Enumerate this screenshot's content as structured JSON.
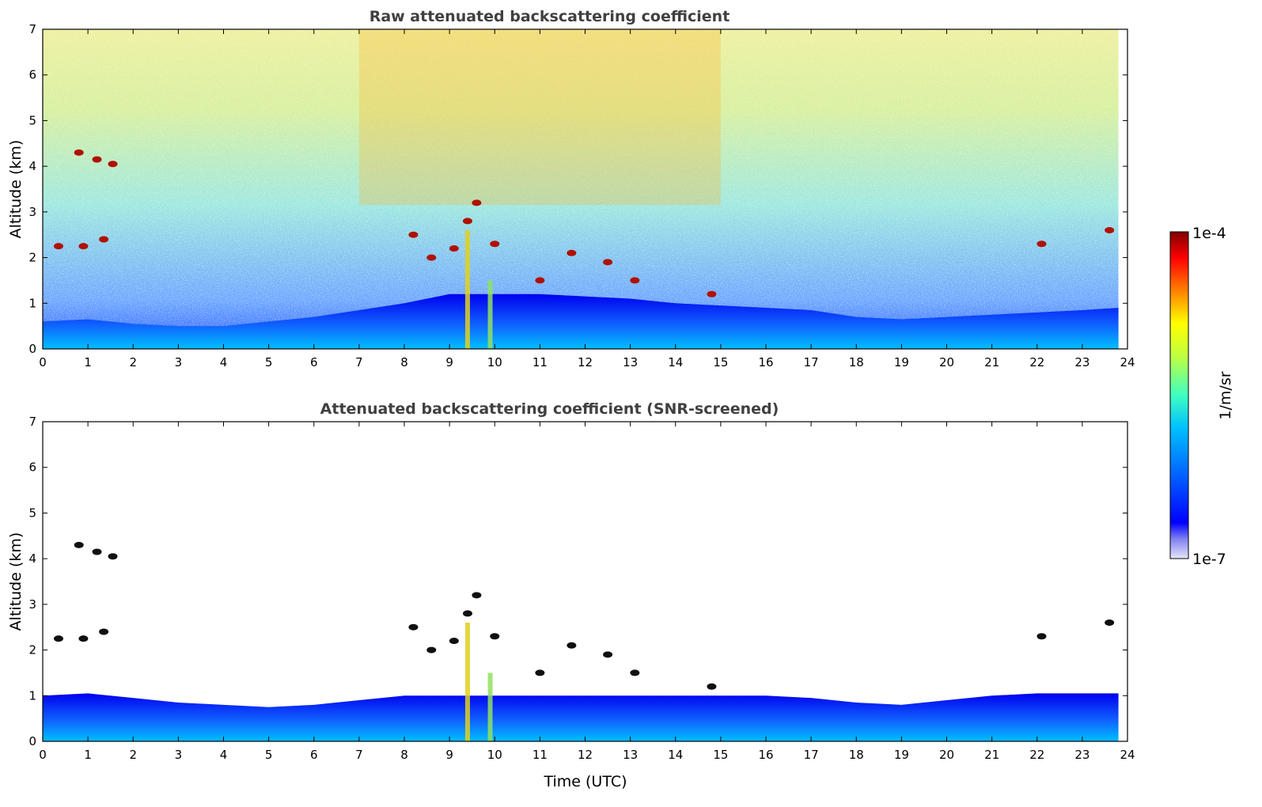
{
  "figure": {
    "colorbar": {
      "max_label": "1e-4",
      "min_label": "1e-7",
      "unit_label": "1/m/sr",
      "scale": "log",
      "colormap": "jet",
      "low_end_colors": [
        "#e6e6fa",
        "#b3b3f5",
        "#8080f0"
      ]
    },
    "x_label_bottom": "Time (UTC)"
  },
  "chart_data": [
    {
      "type": "heatmap",
      "title": "Raw attenuated backscattering coefficient",
      "xlabel": "",
      "ylabel": "Altitude (km)",
      "xlim": [
        0,
        24
      ],
      "ylim": [
        0,
        7
      ],
      "x_ticks": [
        "0",
        "1",
        "2",
        "3",
        "4",
        "5",
        "6",
        "7",
        "8",
        "9",
        "10",
        "11",
        "12",
        "13",
        "14",
        "15",
        "16",
        "17",
        "18",
        "19",
        "20",
        "21",
        "22",
        "23",
        "24"
      ],
      "y_ticks": [
        "0",
        "1",
        "2",
        "3",
        "4",
        "5",
        "6",
        "7"
      ],
      "grid": false,
      "data_extent_x": [
        0,
        23.8
      ],
      "mixing_layer_top_km": [
        [
          0,
          0.6
        ],
        [
          1,
          0.65
        ],
        [
          2,
          0.55
        ],
        [
          3,
          0.5
        ],
        [
          4,
          0.5
        ],
        [
          5,
          0.6
        ],
        [
          6,
          0.7
        ],
        [
          7,
          0.85
        ],
        [
          8,
          1.0
        ],
        [
          9,
          1.2
        ],
        [
          10,
          1.2
        ],
        [
          11,
          1.2
        ],
        [
          12,
          1.15
        ],
        [
          13,
          1.1
        ],
        [
          14,
          1.0
        ],
        [
          15,
          0.95
        ],
        [
          16,
          0.9
        ],
        [
          17,
          0.85
        ],
        [
          18,
          0.7
        ],
        [
          19,
          0.65
        ],
        [
          20,
          0.7
        ],
        [
          21,
          0.75
        ],
        [
          22,
          0.8
        ],
        [
          23,
          0.85
        ],
        [
          23.8,
          0.9
        ]
      ],
      "noise_increase_window_utc": [
        7,
        15
      ],
      "precipitation_streaks_utc": [
        9.4,
        9.9
      ],
      "cloud_features": [
        {
          "time": 0.8,
          "altitude_km": 4.3
        },
        {
          "time": 1.2,
          "altitude_km": 4.15
        },
        {
          "time": 1.55,
          "altitude_km": 4.05
        },
        {
          "time": 0.35,
          "altitude_km": 2.25
        },
        {
          "time": 0.9,
          "altitude_km": 2.25
        },
        {
          "time": 1.35,
          "altitude_km": 2.4
        },
        {
          "time": 8.2,
          "altitude_km": 2.5
        },
        {
          "time": 8.6,
          "altitude_km": 2.0
        },
        {
          "time": 9.1,
          "altitude_km": 2.2
        },
        {
          "time": 9.4,
          "altitude_km": 2.8
        },
        {
          "time": 9.6,
          "altitude_km": 3.2
        },
        {
          "time": 10.0,
          "altitude_km": 2.3
        },
        {
          "time": 11.0,
          "altitude_km": 1.5
        },
        {
          "time": 11.7,
          "altitude_km": 2.1
        },
        {
          "time": 12.5,
          "altitude_km": 1.9
        },
        {
          "time": 13.1,
          "altitude_km": 1.5
        },
        {
          "time": 14.8,
          "altitude_km": 1.2
        },
        {
          "time": 22.1,
          "altitude_km": 2.3
        },
        {
          "time": 23.6,
          "altitude_km": 2.6
        }
      ]
    },
    {
      "type": "heatmap",
      "title": "Attenuated backscattering coefficient (SNR-screened)",
      "xlabel": "Time (UTC)",
      "ylabel": "Altitude (km)",
      "xlim": [
        0,
        24
      ],
      "ylim": [
        0,
        7
      ],
      "x_ticks": [
        "0",
        "1",
        "2",
        "3",
        "4",
        "5",
        "6",
        "7",
        "8",
        "9",
        "10",
        "11",
        "12",
        "13",
        "14",
        "15",
        "16",
        "17",
        "18",
        "19",
        "20",
        "21",
        "22",
        "23",
        "24"
      ],
      "y_ticks": [
        "0",
        "1",
        "2",
        "3",
        "4",
        "5",
        "6",
        "7"
      ],
      "grid": false,
      "data_extent_x": [
        0,
        23.8
      ],
      "mixing_layer_top_km": [
        [
          0,
          1.0
        ],
        [
          1,
          1.05
        ],
        [
          2,
          0.95
        ],
        [
          3,
          0.85
        ],
        [
          4,
          0.8
        ],
        [
          5,
          0.75
        ],
        [
          6,
          0.8
        ],
        [
          7,
          0.9
        ],
        [
          8,
          1.0
        ],
        [
          9,
          1.0
        ],
        [
          10,
          1.0
        ],
        [
          11,
          1.0
        ],
        [
          12,
          1.0
        ],
        [
          13,
          1.0
        ],
        [
          14,
          1.0
        ],
        [
          15,
          1.0
        ],
        [
          16,
          1.0
        ],
        [
          17,
          0.95
        ],
        [
          18,
          0.85
        ],
        [
          19,
          0.8
        ],
        [
          20,
          0.9
        ],
        [
          21,
          1.0
        ],
        [
          22,
          1.05
        ],
        [
          23,
          1.05
        ],
        [
          23.8,
          1.05
        ]
      ],
      "precipitation_streaks_utc": [
        9.4,
        9.9
      ],
      "cloud_features": [
        {
          "time": 0.8,
          "altitude_km": 4.3
        },
        {
          "time": 1.2,
          "altitude_km": 4.15
        },
        {
          "time": 1.55,
          "altitude_km": 4.05
        },
        {
          "time": 0.35,
          "altitude_km": 2.25
        },
        {
          "time": 0.9,
          "altitude_km": 2.25
        },
        {
          "time": 1.35,
          "altitude_km": 2.4
        },
        {
          "time": 8.2,
          "altitude_km": 2.5
        },
        {
          "time": 8.6,
          "altitude_km": 2.0
        },
        {
          "time": 9.1,
          "altitude_km": 2.2
        },
        {
          "time": 9.4,
          "altitude_km": 2.8
        },
        {
          "time": 9.6,
          "altitude_km": 3.2
        },
        {
          "time": 10.0,
          "altitude_km": 2.3
        },
        {
          "time": 11.0,
          "altitude_km": 1.5
        },
        {
          "time": 11.7,
          "altitude_km": 2.1
        },
        {
          "time": 12.5,
          "altitude_km": 1.9
        },
        {
          "time": 13.1,
          "altitude_km": 1.5
        },
        {
          "time": 14.8,
          "altitude_km": 1.2
        },
        {
          "time": 22.1,
          "altitude_km": 2.3
        },
        {
          "time": 23.6,
          "altitude_km": 2.6
        }
      ]
    }
  ]
}
